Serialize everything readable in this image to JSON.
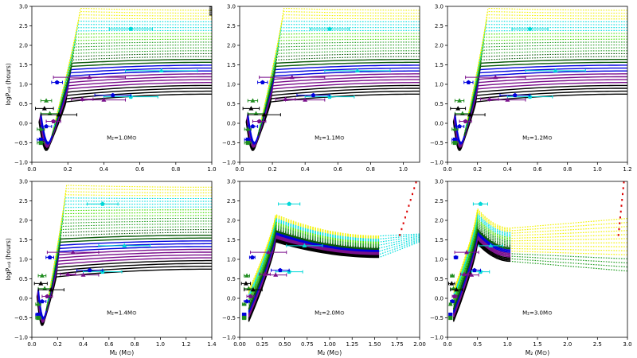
{
  "chart_data": [
    {
      "type": "line",
      "panel": "M2=1.0",
      "annotation": "M₂=1.0M⊙",
      "xlim": [
        0.0,
        1.0
      ],
      "ylim": [
        -1.0,
        3.0
      ],
      "xticks": [
        "0.0",
        "0.2",
        "0.4",
        "0.6",
        "0.8",
        "1.0"
      ],
      "yticks": [
        "−1.0",
        "−0.5",
        "0.0",
        "0.5",
        "1.0",
        "1.5",
        "2.0",
        "2.5",
        "3.0"
      ],
      "ylabel": "logPₒᵣᵦ (hours)",
      "xlabel": ""
    },
    {
      "type": "line",
      "panel": "M2=1.1",
      "annotation": "M₂=1.1M⊙",
      "xlim": [
        0.0,
        1.1
      ],
      "ylim": [
        -1.0,
        3.0
      ],
      "xticks": [
        "0.0",
        "0.2",
        "0.4",
        "0.6",
        "0.8",
        "1.0"
      ],
      "yticks": [
        "−1.0",
        "−0.5",
        "0.0",
        "0.5",
        "1.0",
        "1.5",
        "2.0",
        "2.5",
        "3.0"
      ],
      "ylabel": "",
      "xlabel": ""
    },
    {
      "type": "line",
      "panel": "M2=1.2",
      "annotation": "M₂=1.2M⊙",
      "xlim": [
        0.0,
        1.2
      ],
      "ylim": [
        -1.0,
        3.0
      ],
      "xticks": [
        "0.0",
        "0.2",
        "0.4",
        "0.6",
        "0.8",
        "1.0",
        "1.2"
      ],
      "yticks": [
        "−1.0",
        "−0.5",
        "0.0",
        "0.5",
        "1.0",
        "1.5",
        "2.0",
        "2.5",
        "3.0"
      ],
      "ylabel": "",
      "xlabel": ""
    },
    {
      "type": "line",
      "panel": "M2=1.4",
      "annotation": "M₂=1.4M⊙",
      "xlim": [
        0.0,
        1.4
      ],
      "ylim": [
        -1.0,
        3.0
      ],
      "xticks": [
        "0.0",
        "0.2",
        "0.4",
        "0.6",
        "0.8",
        "1.0",
        "1.2",
        "1.4"
      ],
      "yticks": [
        "−1.0",
        "−0.5",
        "0.0",
        "0.5",
        "1.0",
        "1.5",
        "2.0",
        "2.5",
        "3.0"
      ],
      "ylabel": "logPₒᵣᵦ (hours)",
      "xlabel": "M₂ (M⊙)"
    },
    {
      "type": "line",
      "panel": "M2=2.0",
      "annotation": "M₂=2.0M⊙",
      "xlim": [
        0.0,
        2.0
      ],
      "ylim": [
        -1.0,
        3.0
      ],
      "xticks": [
        "0.00",
        "0.25",
        "0.50",
        "0.75",
        "1.00",
        "1.25",
        "1.50",
        "1.75",
        "2.00"
      ],
      "yticks": [
        "−1.0",
        "−0.5",
        "0.0",
        "0.5",
        "1.0",
        "1.5",
        "2.0",
        "2.5",
        "3.0"
      ],
      "ylabel": "",
      "xlabel": "M₂ (M⊙)"
    },
    {
      "type": "line",
      "panel": "M2=3.0",
      "annotation": "M₂=3.0M⊙",
      "xlim": [
        0.0,
        3.0
      ],
      "ylim": [
        -1.0,
        3.0
      ],
      "xticks": [
        "0.0",
        "0.5",
        "1.0",
        "1.5",
        "2.0",
        "2.5",
        "3.0"
      ],
      "yticks": [
        "−1.0",
        "−0.5",
        "0.0",
        "0.5",
        "1.0",
        "1.5",
        "2.0",
        "2.5",
        "3.0"
      ],
      "ylabel": "",
      "xlabel": "M₂ (M⊙)"
    }
  ],
  "observed_systems": [
    {
      "m": 0.14,
      "logP": 1.05,
      "xerr": 0.03,
      "marker": "pentagon",
      "color": "#0000dd"
    },
    {
      "m": 0.32,
      "logP": 1.18,
      "xerr": 0.2,
      "marker": "triangle",
      "color": "#7a0f8c"
    },
    {
      "m": 0.55,
      "logP": 2.42,
      "xerr": 0.12,
      "marker": "pentagon",
      "color": "#00d8d8"
    },
    {
      "m": 0.72,
      "logP": 1.35,
      "xerr": 0.2,
      "marker": "triangle",
      "color": "#00d8d8"
    },
    {
      "m": 0.55,
      "logP": 0.68,
      "xerr": 0.15,
      "marker": "pentagon",
      "color": "#00d8d8"
    },
    {
      "m": 0.45,
      "logP": 0.72,
      "xerr": 0.1,
      "marker": "pentagon",
      "color": "#0000dd"
    },
    {
      "m": 0.4,
      "logP": 0.6,
      "xerr": 0.12,
      "marker": "triangle",
      "color": "#7a0f8c"
    },
    {
      "m": 0.28,
      "logP": 0.62,
      "xerr": 0.06,
      "marker": "triangle",
      "color": "#7a0f8c"
    },
    {
      "m": 0.08,
      "logP": 0.58,
      "xerr": 0.03,
      "marker": "triangle",
      "color": "#1f8c1f"
    },
    {
      "m": 0.07,
      "logP": 0.38,
      "xerr": 0.05,
      "marker": "triangle",
      "color": "#000000"
    },
    {
      "m": 0.1,
      "logP": 0.25,
      "xerr": 0.05,
      "marker": "triangle",
      "color": "#1f8c1f"
    },
    {
      "m": 0.15,
      "logP": 0.22,
      "xerr": 0.1,
      "marker": "triangle",
      "color": "#000000"
    },
    {
      "m": 0.12,
      "logP": 0.05,
      "xerr": 0.04,
      "marker": "pentagon",
      "color": "#7a0f8c"
    },
    {
      "m": 0.08,
      "logP": -0.08,
      "xerr": 0.03,
      "marker": "pentagon",
      "color": "#0000dd"
    },
    {
      "m": 0.05,
      "logP": -0.15,
      "xerr": 0.02,
      "marker": "triangle",
      "color": "#1f8c1f"
    },
    {
      "m": 0.05,
      "logP": -0.42,
      "xerr": 0.02,
      "marker": "square",
      "color": "#0000dd"
    },
    {
      "m": 0.05,
      "logP": -0.5,
      "xerr": 0.02,
      "marker": "square",
      "color": "#1f8c1f"
    }
  ],
  "track_colors": [
    "#000000",
    "#7a0f8c",
    "#0000dd",
    "#0a5a0a",
    "#1f9c1f",
    "#44dd00",
    "#00dede",
    "#f2f200"
  ]
}
